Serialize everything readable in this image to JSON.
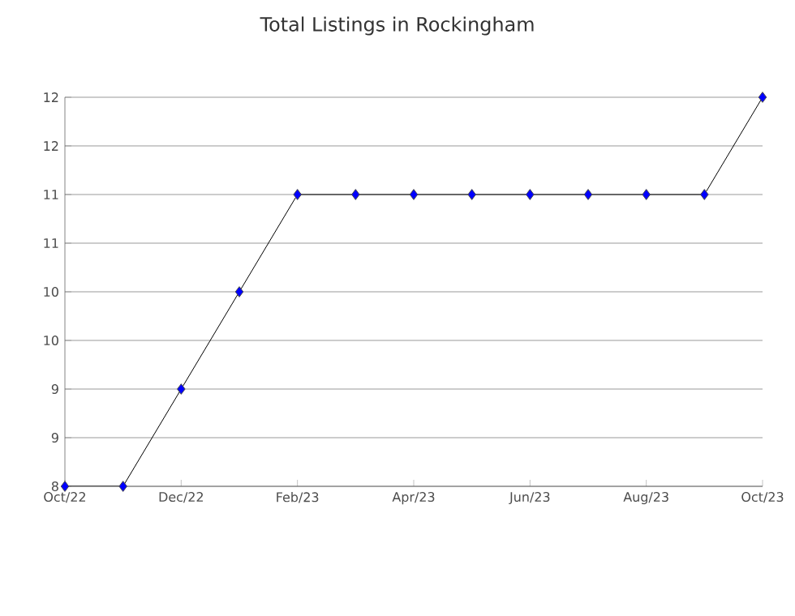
{
  "chart_data": {
    "type": "line",
    "title": "Total Listings in Rockingham",
    "x": [
      "2022-10",
      "2022-11",
      "2022-12",
      "2023-01",
      "2023-02",
      "2023-03",
      "2023-04",
      "2023-05",
      "2023-06",
      "2023-07",
      "2023-08",
      "2023-09",
      "2023-10"
    ],
    "series": [
      {
        "color": "#0000ff",
        "values": [
          8,
          8,
          9,
          10,
          11,
          11,
          11,
          11,
          11,
          11,
          11,
          11,
          12
        ]
      }
    ],
    "xlim": [
      "2022-10",
      "2023-10"
    ],
    "xticks": [
      {
        "value": "2022-10",
        "label": "Oct/22"
      },
      {
        "value": "2022-12",
        "label": "Dec/22"
      },
      {
        "value": "2023-02",
        "label": "Feb/23"
      },
      {
        "value": "2023-04",
        "label": "Apr/23"
      },
      {
        "value": "2023-06",
        "label": "Jun/23"
      },
      {
        "value": "2023-08",
        "label": "Aug/23"
      },
      {
        "value": "2023-10",
        "label": "Oct/23"
      }
    ],
    "ylim": [
      8,
      12
    ],
    "yticks": [
      {
        "value": 8,
        "label": "8"
      },
      {
        "value": 8.5,
        "label": "9"
      },
      {
        "value": 9,
        "label": "9"
      },
      {
        "value": 9.5,
        "label": "10"
      },
      {
        "value": 10,
        "label": "10"
      },
      {
        "value": 10.5,
        "label": "11"
      },
      {
        "value": 11,
        "label": "11"
      },
      {
        "value": 11.5,
        "label": "12"
      },
      {
        "value": 12,
        "label": "12"
      }
    ],
    "grid": "y",
    "marker": "diamond",
    "line_style": "solid"
  }
}
